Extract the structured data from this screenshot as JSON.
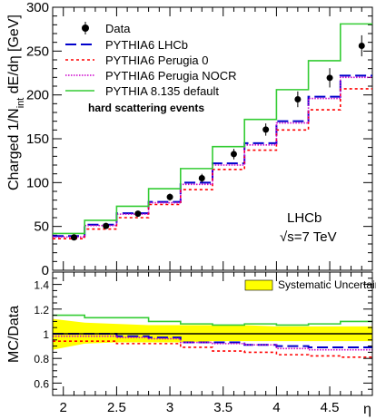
{
  "chart_data": [
    {
      "type": "step",
      "ylabel": "Charged 1/N",
      "ylabel_sub": "int",
      "ylabel_tail": " dE/dη [GeV]",
      "xlim": [
        1.9,
        4.9
      ],
      "ylim": [
        0,
        300
      ],
      "x_ticks": [
        "2",
        "2.5",
        "3",
        "3.5",
        "4",
        "4.5"
      ],
      "y_ticks": [
        "0",
        "50",
        "100",
        "150",
        "200",
        "250",
        "300"
      ],
      "bin_edges": [
        1.9,
        2.2,
        2.5,
        2.8,
        3.1,
        3.4,
        3.7,
        4.0,
        4.3,
        4.6,
        4.9
      ],
      "series": [
        {
          "name": "Data",
          "kind": "points",
          "color": "#000000",
          "x": [
            1.95,
            2.25,
            2.55,
            2.85,
            3.15,
            3.45,
            3.75,
            4.05,
            4.35,
            4.65
          ],
          "y": [
            37.5,
            50.5,
            64.5,
            83.5,
            105,
            132.5,
            160.5,
            195,
            219.5,
            256
          ],
          "err": [
            3,
            3,
            3,
            4,
            5,
            6,
            7,
            9,
            11,
            12
          ]
        },
        {
          "name": "PYTHIA6 LHCb",
          "kind": "step",
          "color": "#0000cc",
          "dash": "12,5",
          "values": [
            39,
            52,
            65,
            78,
            100,
            122,
            145,
            170,
            198,
            222
          ]
        },
        {
          "name": "PYTHIA6 Perugia 0",
          "kind": "step",
          "color": "#ff0000",
          "dash": "3,3",
          "values": [
            36,
            47,
            60,
            75,
            92,
            115,
            137,
            160,
            183,
            207
          ]
        },
        {
          "name": "PYTHIA6 Perugia NOCR",
          "kind": "step",
          "color": "#cc00cc",
          "dash": "1.5,1.5",
          "values": [
            38,
            51,
            64,
            77,
            98,
            120,
            143,
            168,
            196,
            220
          ]
        },
        {
          "name": "PYTHIA 8.135 default",
          "kind": "step",
          "color": "#33cc33",
          "dash": "",
          "values": [
            42,
            57,
            73,
            93,
            116,
            141,
            172,
            206,
            239,
            281
          ]
        }
      ],
      "legend_position": "top-left",
      "annotations": {
        "hard_scattering": "hard scattering events",
        "experiment": "LHCb",
        "energy": "√s=7 TeV"
      }
    },
    {
      "type": "step",
      "ylabel": "MC/Data",
      "xlabel": "η",
      "xlim": [
        1.9,
        4.9
      ],
      "ylim": [
        0.5,
        1.5
      ],
      "x_ticks": [
        "2",
        "2.5",
        "3",
        "3.5",
        "4",
        "4.5"
      ],
      "y_ticks": [
        "0.6",
        "0.8",
        "1",
        "1.2",
        "1.4"
      ],
      "reference_line": 1.0,
      "band": {
        "name": "Systematic Uncertainty",
        "color": "#ffff00",
        "x": [
          1.9,
          2.2,
          2.5,
          2.8,
          3.1,
          3.4,
          3.7,
          4.0,
          4.3,
          4.6,
          4.9
        ],
        "low": [
          0.87,
          0.92,
          0.93,
          0.93,
          0.93,
          0.94,
          0.94,
          0.94,
          0.94,
          0.94,
          0.94
        ],
        "high": [
          1.12,
          1.09,
          1.08,
          1.07,
          1.07,
          1.07,
          1.07,
          1.06,
          1.06,
          1.06,
          1.06
        ]
      },
      "series": [
        {
          "name": "PYTHIA6 LHCb",
          "color": "#0000cc",
          "dash": "12,5",
          "values": [
            1.0,
            1.0,
            0.98,
            0.97,
            0.93,
            0.93,
            0.91,
            0.9,
            0.89,
            0.89
          ]
        },
        {
          "name": "PYTHIA6 Perugia 0",
          "color": "#ff0000",
          "dash": "3,3",
          "values": [
            0.94,
            0.94,
            0.92,
            0.92,
            0.89,
            0.86,
            0.85,
            0.83,
            0.82,
            0.81
          ]
        },
        {
          "name": "PYTHIA6 Perugia NOCR",
          "color": "#cc00cc",
          "dash": "1.5,1.5",
          "values": [
            0.98,
            0.98,
            0.97,
            0.96,
            0.93,
            0.92,
            0.91,
            0.88,
            0.87,
            0.87
          ]
        },
        {
          "name": "PYTHIA 8.135 default",
          "color": "#33cc33",
          "dash": "",
          "values": [
            1.15,
            1.13,
            1.13,
            1.1,
            1.08,
            1.07,
            1.08,
            1.07,
            1.08,
            1.1
          ]
        }
      ],
      "legend_position": "top-right"
    }
  ]
}
